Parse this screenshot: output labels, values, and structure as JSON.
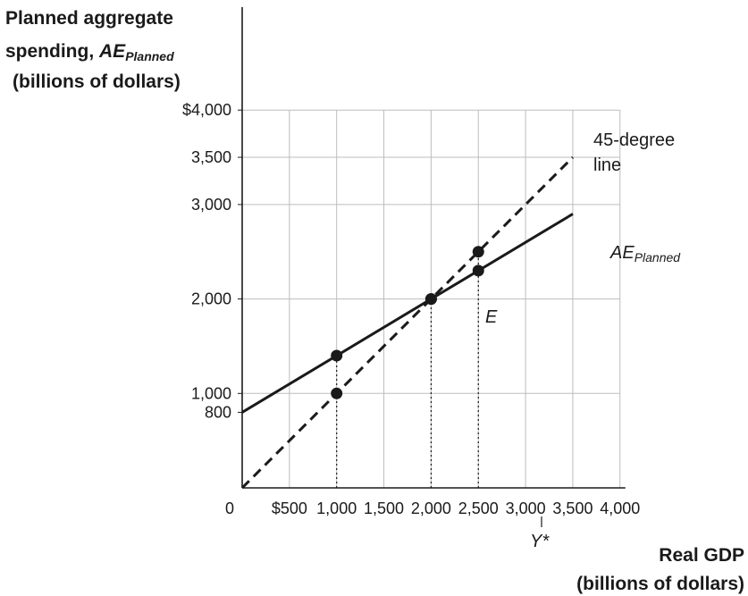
{
  "chart_data": {
    "type": "line",
    "ylabel": {
      "line1": "Planned aggregate",
      "line2_prefix": "spending, ",
      "line2_var": "AE",
      "line2_sub": "Planned",
      "line3": "(billions of dollars)"
    },
    "xlabel": {
      "line1": "Real GDP",
      "line2": "(billions of dollars)"
    },
    "xlim": [
      0,
      4000
    ],
    "ylim": [
      0,
      4000
    ],
    "x_ticks": [
      {
        "value": 0,
        "label": "0"
      },
      {
        "value": 500,
        "label": "$500"
      },
      {
        "value": 1000,
        "label": "1,000"
      },
      {
        "value": 1500,
        "label": "1,500"
      },
      {
        "value": 2000,
        "label": "2,000"
      },
      {
        "value": 2500,
        "label": "2,500"
      },
      {
        "value": 3000,
        "label": "3,000"
      },
      {
        "value": 3500,
        "label": "3,500"
      },
      {
        "value": 4000,
        "label": "4,000"
      }
    ],
    "y_ticks": [
      {
        "value": 800,
        "label": "800"
      },
      {
        "value": 1000,
        "label": "1,000"
      },
      {
        "value": 2000,
        "label": "2,000"
      },
      {
        "value": 3000,
        "label": "3,000"
      },
      {
        "value": 3500,
        "label": "3,500"
      },
      {
        "value": 4000,
        "label": "$4,000"
      }
    ],
    "grid": true,
    "series": [
      {
        "name": "45-degree line",
        "style": "dashed",
        "x": [
          0,
          3500
        ],
        "y": [
          0,
          3500
        ],
        "points": [
          [
            1000,
            1000
          ],
          [
            2000,
            2000
          ],
          [
            2500,
            2500
          ]
        ]
      },
      {
        "name": "AE_Planned",
        "style": "solid",
        "x": [
          0,
          3500
        ],
        "y": [
          800,
          2900
        ],
        "points": [
          [
            1000,
            1400
          ],
          [
            2000,
            2000
          ],
          [
            2500,
            2300
          ]
        ]
      }
    ],
    "dotted_guides": [
      {
        "x": 1000,
        "y_from": 0,
        "y_to": 1400
      },
      {
        "x": 2000,
        "y_from": 0,
        "y_to": 2000
      },
      {
        "x": 2500,
        "y_from": 0,
        "y_to": 2500
      }
    ],
    "annotations": {
      "line45_1": "45-degree",
      "line45_2": "line",
      "ae_var": "AE",
      "ae_sub": "Planned",
      "equilibrium": "E",
      "potential": "Y*"
    },
    "colors": {
      "line": "#1a1a1a",
      "grid": "#bdbdbd",
      "axis": "#1a1a1a"
    }
  }
}
